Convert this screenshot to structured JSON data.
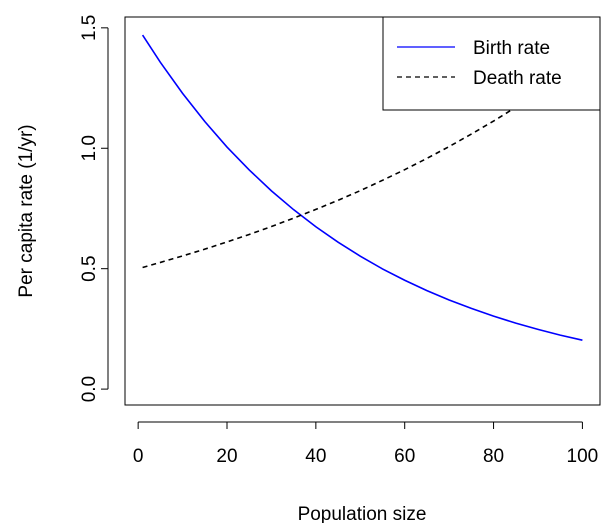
{
  "chart_data": {
    "type": "line",
    "xlabel": "Population size",
    "ylabel": "Per capita rate (1/yr)",
    "x": [
      1,
      5,
      10,
      15,
      20,
      25,
      30,
      35,
      40,
      45,
      50,
      55,
      60,
      65,
      70,
      75,
      80,
      85,
      90,
      95,
      100
    ],
    "series": [
      {
        "name": "Birth rate",
        "color": "#0000ff",
        "dash": "solid",
        "values": [
          1.47,
          1.357,
          1.228,
          1.111,
          1.005,
          0.91,
          0.823,
          0.745,
          0.674,
          0.61,
          0.552,
          0.499,
          0.452,
          0.409,
          0.37,
          0.335,
          0.303,
          0.274,
          0.248,
          0.224,
          0.203
        ]
      },
      {
        "name": "Death rate",
        "color": "#000000",
        "dash": "dashed",
        "values": [
          0.505,
          0.526,
          0.553,
          0.581,
          0.611,
          0.642,
          0.675,
          0.71,
          0.746,
          0.784,
          0.824,
          0.867,
          0.911,
          0.958,
          1.007,
          1.059,
          1.113,
          1.17,
          1.23,
          1.293,
          1.359
        ]
      }
    ],
    "xlim": [
      -2.96,
      103.96
    ],
    "ylim": [
      -0.066,
      1.545
    ],
    "xticks": [
      0,
      20,
      40,
      60,
      80,
      100
    ],
    "yticks": [
      {
        "value": 0,
        "label": "0.0"
      },
      0.5,
      {
        "value": 1,
        "label": "1.0"
      },
      1.5
    ],
    "legend": "topright"
  }
}
